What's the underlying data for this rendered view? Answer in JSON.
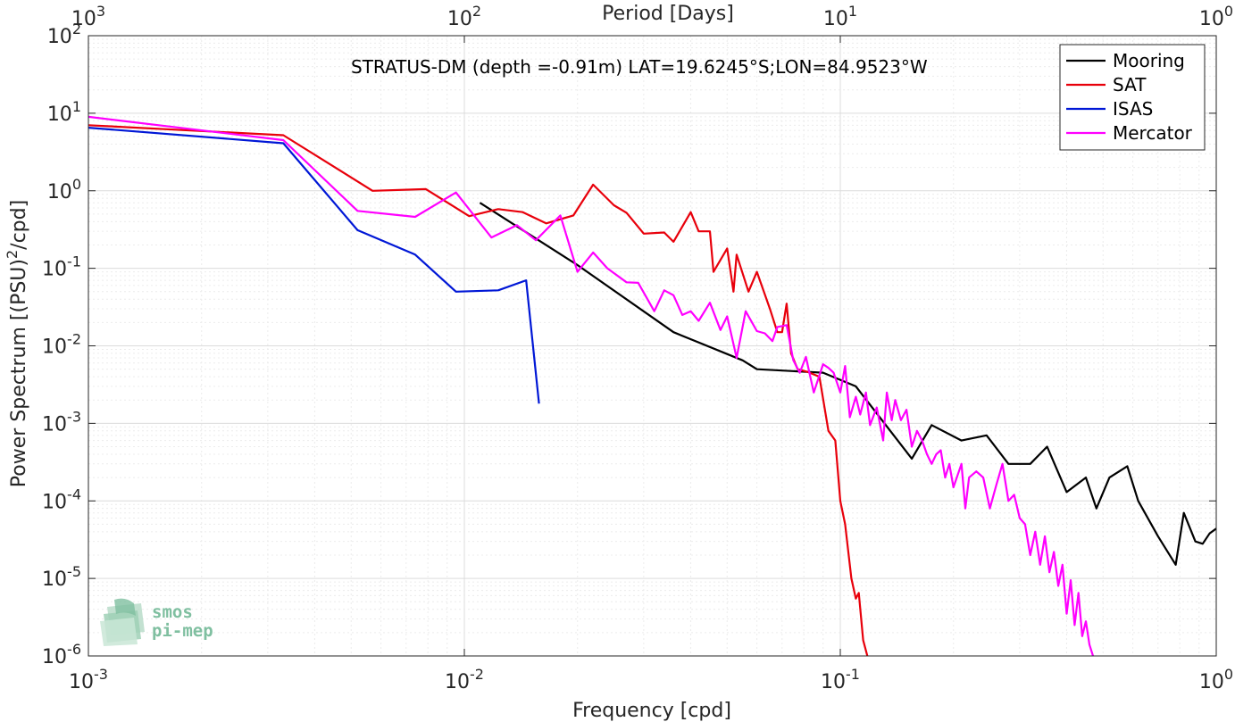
{
  "chart_data": {
    "type": "line",
    "title": "",
    "annotation": "STRATUS-DM (depth =-0.91m) LAT=19.6245°S;LON=84.9523°W",
    "xlabel": "Frequency [cpd]",
    "ylabel": "Power Spectrum [(PSU)²/cpd]",
    "top_xlabel": "Period [Days]",
    "x_scale": "log",
    "y_scale": "log",
    "xlim": [
      0.001,
      1
    ],
    "ylim": [
      1e-06,
      100
    ],
    "x_ticks": [
      {
        "value": 0.001,
        "base": "10",
        "exp": "-3"
      },
      {
        "value": 0.01,
        "base": "10",
        "exp": "-2"
      },
      {
        "value": 0.1,
        "base": "10",
        "exp": "-1"
      },
      {
        "value": 1,
        "base": "10",
        "exp": "0"
      }
    ],
    "top_ticks": [
      {
        "value": 0.001,
        "base": "10",
        "exp": "3"
      },
      {
        "value": 0.01,
        "base": "10",
        "exp": "2"
      },
      {
        "value": 0.1,
        "base": "10",
        "exp": "1"
      },
      {
        "value": 1,
        "base": "10",
        "exp": "0"
      }
    ],
    "y_ticks": [
      {
        "value": 100,
        "base": "10",
        "exp": "2"
      },
      {
        "value": 10,
        "base": "10",
        "exp": "1"
      },
      {
        "value": 1,
        "base": "10",
        "exp": "0"
      },
      {
        "value": 0.1,
        "base": "10",
        "exp": "-1"
      },
      {
        "value": 0.01,
        "base": "10",
        "exp": "-2"
      },
      {
        "value": 0.001,
        "base": "10",
        "exp": "-3"
      },
      {
        "value": 0.0001,
        "base": "10",
        "exp": "-4"
      },
      {
        "value": 1e-05,
        "base": "10",
        "exp": "-5"
      },
      {
        "value": 1e-06,
        "base": "10",
        "exp": "-6"
      }
    ],
    "grid": true,
    "legend_position": "top-right",
    "series": [
      {
        "name": "Mooring",
        "color": "#000000",
        "points": [
          [
            0.011,
            0.7
          ],
          [
            0.02,
            0.11
          ],
          [
            0.036,
            0.015
          ],
          [
            0.055,
            0.0065
          ],
          [
            0.06,
            0.005
          ],
          [
            0.09,
            0.0045
          ],
          [
            0.11,
            0.003
          ],
          [
            0.155,
            0.00035
          ],
          [
            0.175,
            0.00095
          ],
          [
            0.21,
            0.0006
          ],
          [
            0.245,
            0.0007
          ],
          [
            0.28,
            0.0003
          ],
          [
            0.32,
            0.0003
          ],
          [
            0.355,
            0.0005
          ],
          [
            0.4,
            0.00013
          ],
          [
            0.45,
            0.0002
          ],
          [
            0.48,
            8e-05
          ],
          [
            0.52,
            0.0002
          ],
          [
            0.58,
            0.00028
          ],
          [
            0.62,
            0.0001
          ],
          [
            0.7,
            3.5e-05
          ],
          [
            0.78,
            1.5e-05
          ],
          [
            0.82,
            7e-05
          ],
          [
            0.88,
            3e-05
          ],
          [
            0.92,
            2.8e-05
          ],
          [
            0.96,
            3.8e-05
          ],
          [
            1.0,
            4.4e-05
          ]
        ]
      },
      {
        "name": "SAT",
        "color": "#e8000b",
        "points": [
          [
            0.001,
            7.0
          ],
          [
            0.0033,
            5.2
          ],
          [
            0.0057,
            1.0
          ],
          [
            0.0079,
            1.05
          ],
          [
            0.0103,
            0.47
          ],
          [
            0.0123,
            0.58
          ],
          [
            0.0143,
            0.53
          ],
          [
            0.0165,
            0.38
          ],
          [
            0.0195,
            0.48
          ],
          [
            0.022,
            1.2
          ],
          [
            0.025,
            0.65
          ],
          [
            0.027,
            0.52
          ],
          [
            0.03,
            0.28
          ],
          [
            0.034,
            0.29
          ],
          [
            0.036,
            0.22
          ],
          [
            0.04,
            0.53
          ],
          [
            0.042,
            0.3
          ],
          [
            0.045,
            0.3
          ],
          [
            0.046,
            0.09
          ],
          [
            0.05,
            0.18
          ],
          [
            0.052,
            0.05
          ],
          [
            0.053,
            0.15
          ],
          [
            0.057,
            0.05
          ],
          [
            0.06,
            0.09
          ],
          [
            0.065,
            0.03
          ],
          [
            0.068,
            0.015
          ],
          [
            0.07,
            0.015
          ],
          [
            0.072,
            0.035
          ],
          [
            0.074,
            0.008
          ],
          [
            0.077,
            0.005
          ],
          [
            0.082,
            0.0046
          ],
          [
            0.088,
            0.004
          ],
          [
            0.093,
            0.0008
          ],
          [
            0.097,
            0.0006
          ],
          [
            0.1,
            0.0001
          ],
          [
            0.103,
            5e-05
          ],
          [
            0.107,
            1e-05
          ],
          [
            0.11,
            5.5e-06
          ],
          [
            0.112,
            6.5e-06
          ],
          [
            0.115,
            1.6e-06
          ],
          [
            0.118,
            1e-06
          ]
        ]
      },
      {
        "name": "ISAS",
        "color": "#0017d6",
        "points": [
          [
            0.001,
            6.5
          ],
          [
            0.0033,
            4.1
          ],
          [
            0.0052,
            0.31
          ],
          [
            0.0074,
            0.15
          ],
          [
            0.0095,
            0.05
          ],
          [
            0.0123,
            0.052
          ],
          [
            0.0146,
            0.07
          ],
          [
            0.0158,
            0.0018
          ]
        ]
      },
      {
        "name": "Mercator",
        "color": "#ff00ff",
        "points": [
          [
            0.001,
            9.0
          ],
          [
            0.0033,
            4.5
          ],
          [
            0.0052,
            0.55
          ],
          [
            0.0074,
            0.46
          ],
          [
            0.0095,
            0.95
          ],
          [
            0.0118,
            0.25
          ],
          [
            0.0138,
            0.36
          ],
          [
            0.0155,
            0.23
          ],
          [
            0.018,
            0.48
          ],
          [
            0.02,
            0.09
          ],
          [
            0.022,
            0.16
          ],
          [
            0.024,
            0.1
          ],
          [
            0.027,
            0.066
          ],
          [
            0.029,
            0.065
          ],
          [
            0.032,
            0.028
          ],
          [
            0.034,
            0.052
          ],
          [
            0.036,
            0.045
          ],
          [
            0.038,
            0.025
          ],
          [
            0.04,
            0.028
          ],
          [
            0.042,
            0.021
          ],
          [
            0.045,
            0.036
          ],
          [
            0.048,
            0.016
          ],
          [
            0.05,
            0.024
          ],
          [
            0.053,
            0.007
          ],
          [
            0.056,
            0.028
          ],
          [
            0.06,
            0.0155
          ],
          [
            0.063,
            0.0145
          ],
          [
            0.066,
            0.0115
          ],
          [
            0.068,
            0.0175
          ],
          [
            0.072,
            0.0185
          ],
          [
            0.075,
            0.0065
          ],
          [
            0.078,
            0.0045
          ],
          [
            0.081,
            0.0072
          ],
          [
            0.085,
            0.0025
          ],
          [
            0.09,
            0.0058
          ],
          [
            0.093,
            0.0052
          ],
          [
            0.096,
            0.0045
          ],
          [
            0.1,
            0.0025
          ],
          [
            0.103,
            0.0055
          ],
          [
            0.106,
            0.0012
          ],
          [
            0.11,
            0.0022
          ],
          [
            0.113,
            0.0013
          ],
          [
            0.117,
            0.0025
          ],
          [
            0.12,
            0.00095
          ],
          [
            0.125,
            0.0016
          ],
          [
            0.13,
            0.0006
          ],
          [
            0.133,
            0.0025
          ],
          [
            0.137,
            0.0011
          ],
          [
            0.14,
            0.002
          ],
          [
            0.145,
            0.0011
          ],
          [
            0.15,
            0.0015
          ],
          [
            0.155,
            0.0005
          ],
          [
            0.16,
            0.0008
          ],
          [
            0.165,
            0.0006
          ],
          [
            0.17,
            0.0004
          ],
          [
            0.175,
            0.0003
          ],
          [
            0.18,
            0.0004
          ],
          [
            0.185,
            0.00045
          ],
          [
            0.19,
            0.0002
          ],
          [
            0.195,
            0.0003
          ],
          [
            0.2,
            0.00015
          ],
          [
            0.21,
            0.0003
          ],
          [
            0.215,
            8e-05
          ],
          [
            0.22,
            0.0002
          ],
          [
            0.23,
            0.00024
          ],
          [
            0.24,
            0.0002
          ],
          [
            0.25,
            8e-05
          ],
          [
            0.26,
            0.00016
          ],
          [
            0.27,
            0.0003
          ],
          [
            0.28,
            0.0001
          ],
          [
            0.29,
            0.00012
          ],
          [
            0.3,
            6e-05
          ],
          [
            0.31,
            5e-05
          ],
          [
            0.32,
            2e-05
          ],
          [
            0.33,
            4e-05
          ],
          [
            0.34,
            1.5e-05
          ],
          [
            0.35,
            3.5e-05
          ],
          [
            0.36,
            1.2e-05
          ],
          [
            0.37,
            2.2e-05
          ],
          [
            0.38,
            8e-06
          ],
          [
            0.39,
            1.5e-05
          ],
          [
            0.4,
            3.5e-06
          ],
          [
            0.41,
            9.5e-06
          ],
          [
            0.42,
            2.5e-06
          ],
          [
            0.43,
            6.5e-06
          ],
          [
            0.44,
            1.8e-06
          ],
          [
            0.45,
            2.8e-06
          ],
          [
            0.46,
            1.4e-06
          ],
          [
            0.47,
            1e-06
          ]
        ]
      }
    ]
  },
  "logo": {
    "line1": "smos",
    "line2": "pi-mep"
  }
}
